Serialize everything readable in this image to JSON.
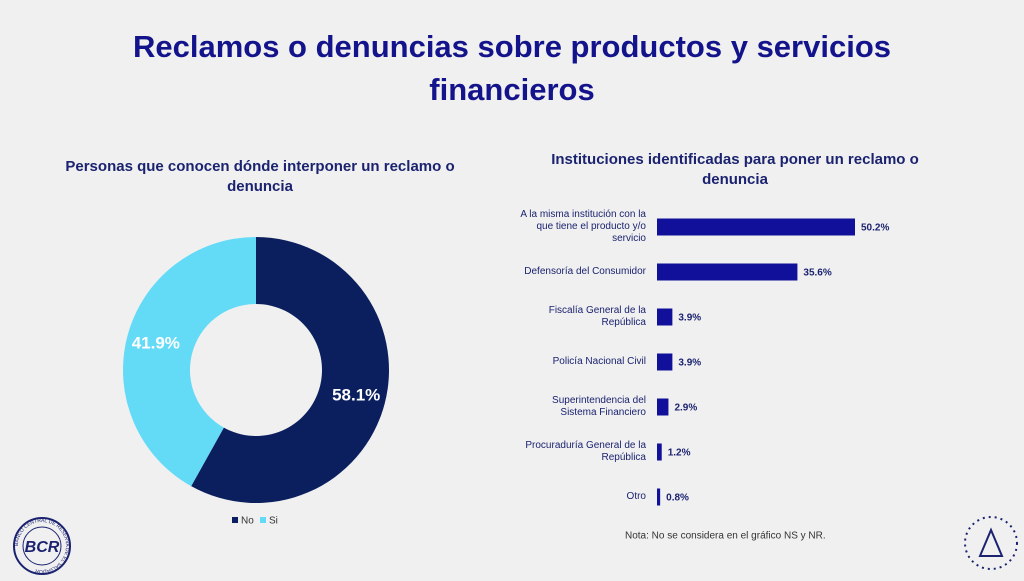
{
  "slide": {
    "title": "Reclamos o denuncias sobre productos y servicios financieros",
    "logo": {
      "text": "BCR",
      "ring": "BANCO CENTRAL DE RESERVA DE EL SALVADOR"
    }
  },
  "chart_data": [
    {
      "type": "donut",
      "title": "Personas que conocen dónde interponer un reclamo o denuncia",
      "categories": [
        "No",
        "Si"
      ],
      "values": [
        58.1,
        41.9
      ],
      "value_labels": [
        "58.1%",
        "41.9%"
      ],
      "colors": [
        "#0b1f5e",
        "#63dbf7"
      ],
      "legend": "bottom"
    },
    {
      "type": "hbar",
      "title": "Instituciones identificadas para poner un reclamo o denuncia",
      "categories": [
        "A la misma institución con la que tiene el producto y/o servicio",
        "Defensoría del Consumidor",
        "Fiscalía General de la República",
        "Policía Nacional Civil",
        "Superintendencia del Sistema Financiero",
        "Procuraduría General de la República",
        "Otro"
      ],
      "values": [
        50.2,
        35.6,
        3.9,
        3.9,
        2.9,
        1.2,
        0.8
      ],
      "value_labels": [
        "50.2%",
        "35.6%",
        "3.9%",
        "3.9%",
        "2.9%",
        "1.2%",
        "0.8%"
      ],
      "color": "#10109a",
      "note": "Nota: No se considera en el gráfico NS y NR."
    }
  ]
}
